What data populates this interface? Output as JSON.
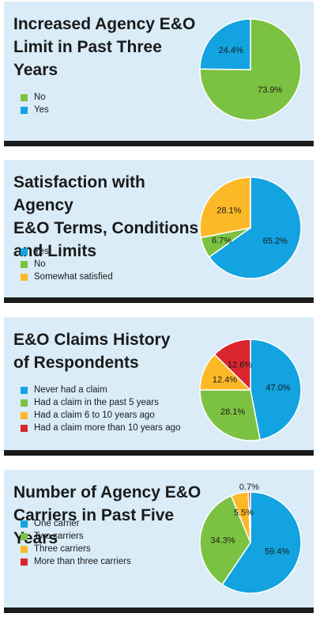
{
  "chart_data": [
    {
      "type": "pie",
      "title": "Increased Agency E&O Limit in Past Three Years",
      "title_lines": [
        "Increased Agency E&O",
        "Limit in Past Three",
        "Years"
      ],
      "slices": [
        {
          "name": "No",
          "value": 73.9,
          "color": "#7cc242"
        },
        {
          "name": "Yes",
          "value": 24.4,
          "color": "#12a3e0"
        }
      ],
      "legend_order": [
        "No",
        "Yes"
      ]
    },
    {
      "type": "pie",
      "title": "Satisfaction with Agency E&O Terms, Conditions and Limits",
      "title_lines": [
        "Satisfaction with Agency",
        "E&O Terms, Conditions",
        "and Limits"
      ],
      "slices": [
        {
          "name": "Yes",
          "value": 65.2,
          "color": "#12a3e0"
        },
        {
          "name": "No",
          "value": 6.7,
          "color": "#7cc242"
        },
        {
          "name": "Somewhat satisfied",
          "value": 28.1,
          "color": "#fcb927"
        }
      ],
      "legend_order": [
        "Yes",
        "No",
        "Somewhat satisfied"
      ]
    },
    {
      "type": "pie",
      "title": "E&O Claims History of Respondents",
      "title_lines": [
        "E&O Claims History",
        "of Respondents"
      ],
      "slices": [
        {
          "name": "Never had a claim",
          "value": 47.0,
          "color": "#12a3e0"
        },
        {
          "name": "Had a claim in the past 5 years",
          "value": 28.1,
          "color": "#7cc242"
        },
        {
          "name": "Had a claim 6 to 10 years ago",
          "value": 12.4,
          "color": "#fcb927"
        },
        {
          "name": "Had a claim more than 10 years ago",
          "value": 12.6,
          "color": "#d9262e"
        }
      ],
      "legend_order": [
        "Never had a claim",
        "Had a claim in the past 5 years",
        "Had a claim 6 to 10 years ago",
        "Had a claim more than 10 years ago"
      ]
    },
    {
      "type": "pie",
      "title": "Number of Agency E&O Carriers in Past Five Years",
      "title_lines": [
        "Number of Agency E&O",
        "Carriers in Past Five Years"
      ],
      "slices": [
        {
          "name": "One carrier",
          "value": 59.4,
          "color": "#12a3e0"
        },
        {
          "name": "Two carriers",
          "value": 34.3,
          "color": "#7cc242"
        },
        {
          "name": "Three carriers",
          "value": 5.5,
          "color": "#fcb927"
        },
        {
          "name": "More than three carriers",
          "value": 0.7,
          "color": "#d9262e"
        }
      ],
      "legend_order": [
        "One carrier",
        "Two carriers",
        "Three carriers",
        "More than three carriers"
      ]
    }
  ]
}
